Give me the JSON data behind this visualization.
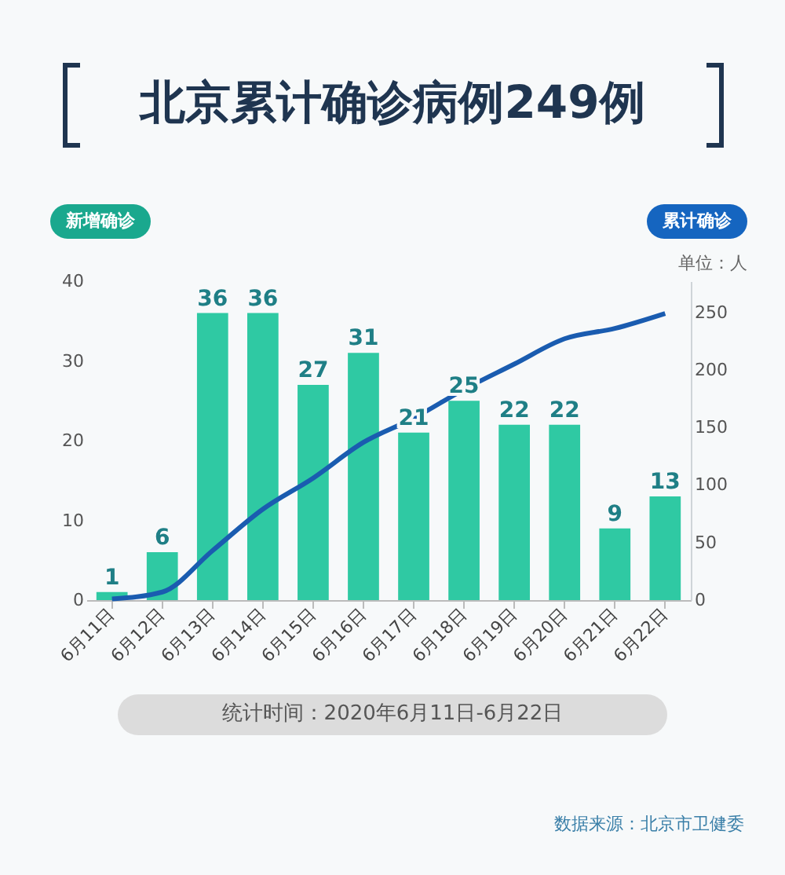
{
  "chart_data": {
    "type": "bar",
    "title": "北京累计确诊病例249例",
    "ylabel": "新增确诊",
    "y2label": "累计确诊",
    "annotations": [
      "单位：人",
      "统计时间：2020年6月11日-6月22日",
      "数据来源：北京市卫健委"
    ],
    "categories": [
      "6月11日",
      "6月12日",
      "6月13日",
      "6月14日",
      "6月15日",
      "6月16日",
      "6月17日",
      "6月18日",
      "6月19日",
      "6月20日",
      "6月21日",
      "6月22日"
    ],
    "series": [
      {
        "color": "#2fc9a3",
        "values": [
          1,
          6,
          36,
          36,
          27,
          31,
          21,
          25,
          22,
          22,
          9,
          13
        ],
        "value_labels": [
          "1",
          "6",
          "36",
          "36",
          "27",
          "31",
          "21",
          "25",
          "22",
          "22",
          "9",
          "13"
        ]
      },
      {
        "type": "line",
        "axis": "y2",
        "color": "#1a5cb0",
        "values": [
          1,
          7,
          43,
          79,
          106,
          137,
          158,
          183,
          205,
          227,
          236,
          249
        ]
      }
    ],
    "ylim": [
      0,
      40
    ],
    "yticks": [
      0,
      10,
      20,
      30,
      40
    ],
    "y2lim": [
      0,
      277
    ],
    "y2ticks": [
      0,
      50,
      100,
      150,
      200,
      250
    ],
    "grid": false,
    "marker": "none",
    "line_style": "solid"
  }
}
